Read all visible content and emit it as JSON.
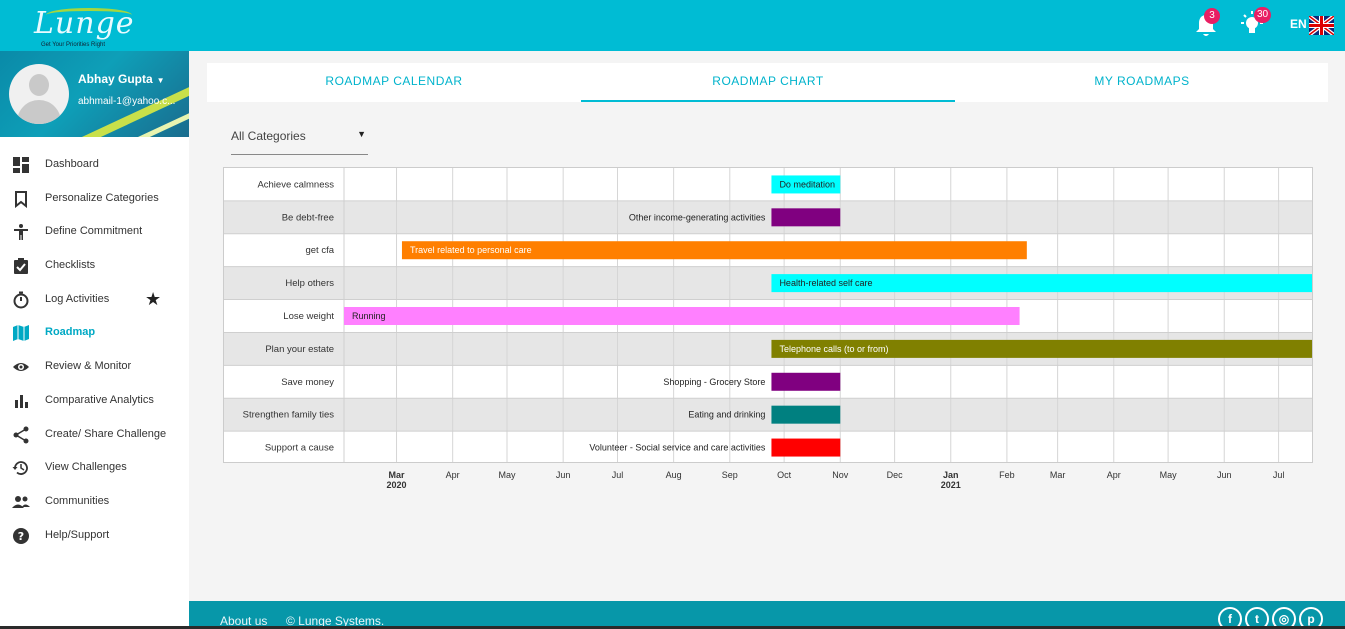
{
  "header": {
    "logo_text": "Lunge",
    "logo_tagline": "Get Your Priorities Right",
    "notifications_count": "3",
    "ideas_count": "30",
    "language": "EN"
  },
  "profile": {
    "name": "Abhay Gupta",
    "email": "abhmail-1@yahoo.c..."
  },
  "sidebar": {
    "items": [
      {
        "label": "Dashboard",
        "icon": "dashboard-icon"
      },
      {
        "label": "Personalize Categories",
        "icon": "bookmark-icon"
      },
      {
        "label": "Define Commitment",
        "icon": "person-icon"
      },
      {
        "label": "Checklists",
        "icon": "clipboard-check-icon"
      },
      {
        "label": "Log Activities",
        "icon": "timer-icon"
      },
      {
        "label": "Roadmap",
        "icon": "map-icon"
      },
      {
        "label": "Review & Monitor",
        "icon": "eye-icon"
      },
      {
        "label": "Comparative Analytics",
        "icon": "bar-chart-icon"
      },
      {
        "label": "Create/ Share Challenge",
        "icon": "share-icon"
      },
      {
        "label": "View Challenges",
        "icon": "history-icon"
      },
      {
        "label": "Communities",
        "icon": "people-icon"
      },
      {
        "label": "Help/Support",
        "icon": "help-icon"
      }
    ],
    "active_index": 5
  },
  "tabs": [
    {
      "label": "ROADMAP CALENDAR"
    },
    {
      "label": "ROADMAP CHART"
    },
    {
      "label": "MY ROADMAPS"
    }
  ],
  "active_tab": 1,
  "filter": {
    "value": "All Categories"
  },
  "chart_data": {
    "type": "gantt",
    "x_range": [
      "2020-02-01",
      "2021-07-20"
    ],
    "x_ticks": [
      {
        "label": "Mar",
        "year": "2020",
        "date": "2020-03-01"
      },
      {
        "label": "Apr",
        "year": "",
        "date": "2020-04-01"
      },
      {
        "label": "May",
        "year": "",
        "date": "2020-05-01"
      },
      {
        "label": "Jun",
        "year": "",
        "date": "2020-06-01"
      },
      {
        "label": "Jul",
        "year": "",
        "date": "2020-07-01"
      },
      {
        "label": "Aug",
        "year": "",
        "date": "2020-08-01"
      },
      {
        "label": "Sep",
        "year": "",
        "date": "2020-09-01"
      },
      {
        "label": "Oct",
        "year": "",
        "date": "2020-10-01"
      },
      {
        "label": "Nov",
        "year": "",
        "date": "2020-11-01"
      },
      {
        "label": "Dec",
        "year": "",
        "date": "2020-12-01"
      },
      {
        "label": "Jan",
        "year": "2021",
        "date": "2021-01-01"
      },
      {
        "label": "Feb",
        "year": "",
        "date": "2021-02-01"
      },
      {
        "label": "Mar",
        "year": "",
        "date": "2021-03-01"
      },
      {
        "label": "Apr",
        "year": "",
        "date": "2021-04-01"
      },
      {
        "label": "May",
        "year": "",
        "date": "2021-05-01"
      },
      {
        "label": "Jun",
        "year": "",
        "date": "2021-06-01"
      },
      {
        "label": "Jul",
        "year": "",
        "date": "2021-07-01"
      }
    ],
    "rows": [
      {
        "category": "Achieve calmness",
        "task": "Do meditation",
        "start": "2020-09-24",
        "end": "2020-11-01",
        "color": "#00ffff",
        "label_inside": true,
        "text_color": "#222222"
      },
      {
        "category": "Be debt-free",
        "task": "Other income-generating activities",
        "start": "2020-09-24",
        "end": "2020-11-01",
        "color": "#800080",
        "label_inside": false,
        "text_color": "#222222"
      },
      {
        "category": "get cfa",
        "task": "Travel related to personal care",
        "start": "2020-03-04",
        "end": "2021-02-12",
        "color": "#ff7f00",
        "label_inside": true,
        "text_color": "#ffffff"
      },
      {
        "category": "Help others",
        "task": "Health-related self care",
        "start": "2020-09-24",
        "end": "2021-07-20",
        "color": "#00ffff",
        "label_inside": true,
        "text_color": "#222222"
      },
      {
        "category": "Lose weight",
        "task": "Running",
        "start": "2020-02-01",
        "end": "2021-02-08",
        "color": "#ff80ff",
        "label_inside": true,
        "text_color": "#222222"
      },
      {
        "category": "Plan your estate",
        "task": "Telephone calls (to or from)",
        "start": "2020-09-24",
        "end": "2021-07-20",
        "color": "#808000",
        "label_inside": true,
        "text_color": "#ffffff"
      },
      {
        "category": "Save money",
        "task": "Shopping - Grocery Store",
        "start": "2020-09-24",
        "end": "2020-11-01",
        "color": "#800080",
        "label_inside": false,
        "text_color": "#222222"
      },
      {
        "category": "Strengthen family ties",
        "task": "Eating and drinking",
        "start": "2020-09-24",
        "end": "2020-11-01",
        "color": "#008080",
        "label_inside": false,
        "text_color": "#222222"
      },
      {
        "category": "Support a cause",
        "task": "Volunteer - Social service and care activities",
        "start": "2020-09-24",
        "end": "2020-11-01",
        "color": "#ff0000",
        "label_inside": false,
        "text_color": "#222222"
      }
    ]
  },
  "footer": {
    "about": "About us",
    "copyright": "© Lunge Systems."
  },
  "social": [
    {
      "icon": "facebook-icon",
      "glyph": "f"
    },
    {
      "icon": "twitter-icon",
      "glyph": "t"
    },
    {
      "icon": "instagram-icon",
      "glyph": "◎"
    },
    {
      "icon": "pinterest-icon",
      "glyph": "p"
    }
  ]
}
